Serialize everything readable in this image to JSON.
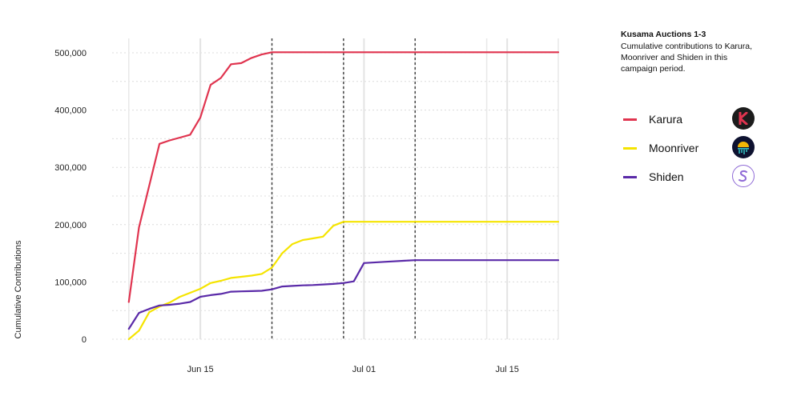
{
  "panel": {
    "title": "Kusama Auctions 1-3",
    "subtitle": "Cumulative contributions to Karura, Moonriver and Shiden in this campaign period."
  },
  "legend": [
    {
      "label": "Karura",
      "color": "#e0344f",
      "logo": "karura-logo-icon"
    },
    {
      "label": "Moonriver",
      "color": "#f5e400",
      "logo": "moonriver-logo-icon"
    },
    {
      "label": "Shiden",
      "color": "#5a2aa8",
      "logo": "shiden-logo-icon"
    }
  ],
  "chart_data": {
    "type": "line",
    "title": "Kusama Auctions 1-3",
    "xlabel": "",
    "ylabel": "Cumulative Contributions",
    "x_ticks": [
      "Jun 15",
      "Jul 01",
      "Jul 15"
    ],
    "y_ticks": [
      "0",
      "100,000",
      "200,000",
      "300,000",
      "400,000",
      "500,000"
    ],
    "xlim": [
      "2021-06-07",
      "2021-07-20"
    ],
    "ylim": [
      0,
      500000
    ],
    "auction_ends": [
      "2021-06-22",
      "2021-06-29",
      "2021-07-06"
    ],
    "grid": true,
    "legend_position": "right",
    "series": [
      {
        "name": "Karura",
        "color": "#e0344f",
        "points": [
          [
            "2021-06-08",
            65000
          ],
          [
            "2021-06-09",
            195000
          ],
          [
            "2021-06-10",
            268000
          ],
          [
            "2021-06-11",
            341000
          ],
          [
            "2021-06-12",
            347000
          ],
          [
            "2021-06-13",
            352000
          ],
          [
            "2021-06-14",
            357000
          ],
          [
            "2021-06-15",
            387000
          ],
          [
            "2021-06-16",
            444000
          ],
          [
            "2021-06-17",
            456000
          ],
          [
            "2021-06-18",
            480000
          ],
          [
            "2021-06-19",
            482000
          ],
          [
            "2021-06-20",
            491000
          ],
          [
            "2021-06-21",
            497000
          ],
          [
            "2021-06-22",
            501000
          ],
          [
            "2021-06-29",
            501000
          ],
          [
            "2021-07-06",
            501000
          ],
          [
            "2021-07-20",
            501000
          ]
        ]
      },
      {
        "name": "Moonriver",
        "color": "#f5e400",
        "points": [
          [
            "2021-06-08",
            0
          ],
          [
            "2021-06-09",
            15000
          ],
          [
            "2021-06-10",
            47000
          ],
          [
            "2021-06-11",
            57000
          ],
          [
            "2021-06-12",
            64000
          ],
          [
            "2021-06-13",
            74000
          ],
          [
            "2021-06-14",
            81000
          ],
          [
            "2021-06-15",
            88000
          ],
          [
            "2021-06-16",
            98000
          ],
          [
            "2021-06-17",
            102000
          ],
          [
            "2021-06-18",
            107000
          ],
          [
            "2021-06-19",
            109000
          ],
          [
            "2021-06-20",
            111000
          ],
          [
            "2021-06-21",
            114000
          ],
          [
            "2021-06-22",
            125000
          ],
          [
            "2021-06-23",
            150000
          ],
          [
            "2021-06-24",
            166000
          ],
          [
            "2021-06-25",
            173000
          ],
          [
            "2021-06-26",
            176000
          ],
          [
            "2021-06-27",
            179000
          ],
          [
            "2021-06-28",
            198000
          ],
          [
            "2021-06-29",
            205000
          ],
          [
            "2021-07-06",
            205000
          ],
          [
            "2021-07-20",
            205000
          ]
        ]
      },
      {
        "name": "Shiden",
        "color": "#5a2aa8",
        "points": [
          [
            "2021-06-08",
            18000
          ],
          [
            "2021-06-09",
            46000
          ],
          [
            "2021-06-10",
            53000
          ],
          [
            "2021-06-11",
            59000
          ],
          [
            "2021-06-12",
            60000
          ],
          [
            "2021-06-13",
            62000
          ],
          [
            "2021-06-14",
            65000
          ],
          [
            "2021-06-15",
            74000
          ],
          [
            "2021-06-16",
            77000
          ],
          [
            "2021-06-17",
            79000
          ],
          [
            "2021-06-18",
            83000
          ],
          [
            "2021-06-19",
            83500
          ],
          [
            "2021-06-20",
            84000
          ],
          [
            "2021-06-21",
            84500
          ],
          [
            "2021-06-22",
            87000
          ],
          [
            "2021-06-23",
            92000
          ],
          [
            "2021-06-24",
            93000
          ],
          [
            "2021-06-25",
            94000
          ],
          [
            "2021-06-26",
            94500
          ],
          [
            "2021-06-27",
            95500
          ],
          [
            "2021-06-28",
            96500
          ],
          [
            "2021-06-29",
            98000
          ],
          [
            "2021-06-30",
            101000
          ],
          [
            "2021-07-01",
            133000
          ],
          [
            "2021-07-03",
            135000
          ],
          [
            "2021-07-05",
            137000
          ],
          [
            "2021-07-06",
            138000
          ],
          [
            "2021-07-20",
            138000
          ]
        ]
      }
    ]
  }
}
